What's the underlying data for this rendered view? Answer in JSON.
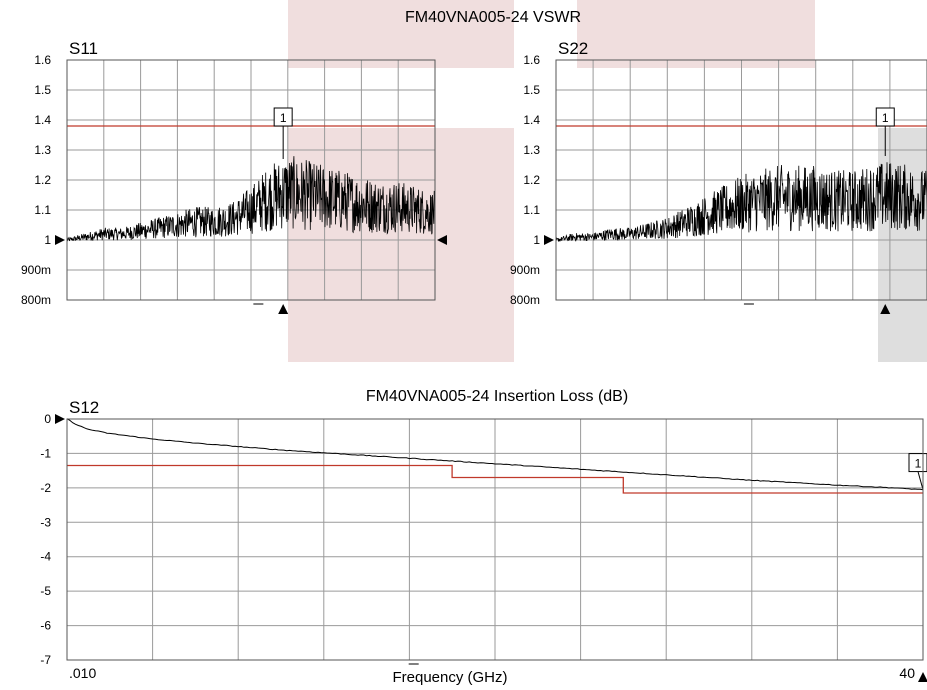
{
  "titles": {
    "vswr": "FM40VNA005-24 VSWR",
    "il": "FM40VNA005-24 Insertion Loss (dB)",
    "xlabel": "Frequency (GHz)"
  },
  "colors": {
    "trace": "#000000",
    "limit": "#c0392b",
    "grid": "#9a9a9a",
    "highlight_pink": "#f0dede",
    "highlight_gray": "#dedede",
    "axis_text": "#000000"
  },
  "chart_data": [
    {
      "id": "s11",
      "type": "line",
      "title": "S11",
      "xlabel": "",
      "ylabel": "",
      "x_range": [
        0.01,
        40
      ],
      "ylim": [
        0.8,
        1.6
      ],
      "ytick_labels": [
        "1.6",
        "1.5",
        "1.4",
        "1.3",
        "1.2",
        "1.1",
        "1",
        "900m",
        "800m"
      ],
      "grid": true,
      "limit_line": 1.38,
      "reference_level": 1.0,
      "marker": {
        "label": "1",
        "x": 23.5,
        "y": 1.27
      },
      "series": [
        {
          "x": [
            0.01,
            2,
            4,
            6,
            8,
            10,
            12,
            14,
            16,
            18,
            20,
            22,
            24,
            26,
            28,
            30,
            32,
            34,
            36,
            38,
            40
          ],
          "y": [
            1.0,
            1.01,
            1.02,
            1.02,
            1.03,
            1.04,
            1.05,
            1.06,
            1.06,
            1.07,
            1.1,
            1.14,
            1.16,
            1.15,
            1.14,
            1.13,
            1.12,
            1.11,
            1.11,
            1.1,
            1.09
          ]
        }
      ]
    },
    {
      "id": "s22",
      "type": "line",
      "title": "S22",
      "xlabel": "",
      "ylabel": "",
      "x_range": [
        0.01,
        40
      ],
      "ylim": [
        0.8,
        1.6
      ],
      "ytick_labels": [
        "1.6",
        "1.5",
        "1.4",
        "1.3",
        "1.2",
        "1.1",
        "1",
        "900m",
        "800m"
      ],
      "grid": true,
      "limit_line": 1.38,
      "reference_level": 1.0,
      "marker": {
        "label": "1",
        "x": 35.5,
        "y": 1.28
      },
      "series": [
        {
          "x": [
            0.01,
            2,
            4,
            6,
            8,
            10,
            12,
            14,
            16,
            18,
            20,
            22,
            24,
            26,
            28,
            30,
            32,
            34,
            36,
            38,
            40
          ],
          "y": [
            1.0,
            1.01,
            1.01,
            1.02,
            1.02,
            1.03,
            1.04,
            1.06,
            1.08,
            1.1,
            1.12,
            1.13,
            1.14,
            1.14,
            1.14,
            1.13,
            1.13,
            1.14,
            1.15,
            1.14,
            1.13
          ]
        }
      ]
    },
    {
      "id": "s12",
      "type": "line",
      "title": "S12",
      "xlabel": "Frequency (GHz)",
      "ylabel": "",
      "x_range": [
        0.01,
        40
      ],
      "xtick_labels": [
        ".010",
        "40"
      ],
      "ylim": [
        -7,
        0
      ],
      "ytick_labels": [
        "0",
        "-1",
        "-2",
        "-3",
        "-4",
        "-5",
        "-6",
        "-7"
      ],
      "grid": true,
      "reference_level": 0,
      "limit_steps": [
        {
          "x0": 0.01,
          "x1": 18,
          "y": -1.35
        },
        {
          "x0": 18,
          "x1": 26,
          "y": -1.7
        },
        {
          "x0": 26,
          "x1": 40,
          "y": -2.15
        }
      ],
      "marker": {
        "label": "1",
        "x": 40,
        "y": -2.05
      },
      "series": [
        {
          "x": [
            0.01,
            0.5,
            1,
            2,
            4,
            6,
            8,
            10,
            12,
            14,
            16,
            18,
            20,
            22,
            24,
            26,
            28,
            30,
            32,
            34,
            36,
            38,
            40
          ],
          "y": [
            0.0,
            -0.18,
            -0.3,
            -0.42,
            -0.58,
            -0.7,
            -0.8,
            -0.9,
            -0.98,
            -1.06,
            -1.14,
            -1.22,
            -1.3,
            -1.38,
            -1.46,
            -1.54,
            -1.62,
            -1.7,
            -1.78,
            -1.85,
            -1.92,
            -1.98,
            -2.05
          ]
        }
      ]
    }
  ]
}
